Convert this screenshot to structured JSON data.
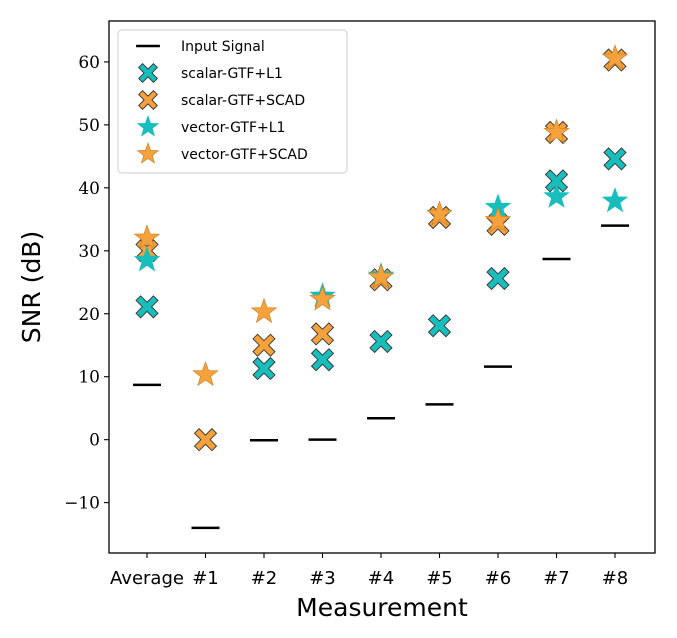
{
  "chart_data": {
    "type": "scatter",
    "categories": [
      "Average",
      "#1",
      "#2",
      "#3",
      "#4",
      "#5",
      "#6",
      "#7",
      "#8"
    ],
    "xlabel": "Measurement",
    "ylabel": "SNR (dB)",
    "ylim": [
      -18,
      66.5
    ],
    "yticks": [
      -10,
      0,
      10,
      20,
      30,
      40,
      50,
      60
    ],
    "ytick_labels": [
      "−10",
      "0",
      "10",
      "20",
      "30",
      "40",
      "50",
      "60"
    ],
    "grid": false,
    "legend_position": "top-left",
    "series": [
      {
        "name": "Input Signal",
        "marker": "hline",
        "color": "#000000",
        "values": [
          8.7,
          -14.0,
          -0.1,
          0.0,
          3.4,
          5.6,
          11.6,
          28.7,
          34.0
        ]
      },
      {
        "name": "scalar-GTF+L1",
        "marker": "x-filled",
        "color": "#17BEBB",
        "values": [
          21.1,
          null,
          11.3,
          12.7,
          15.6,
          18.1,
          25.6,
          41.1,
          44.6
        ]
      },
      {
        "name": "scalar-GTF+SCAD",
        "marker": "x-filled",
        "color": "#F5A13C",
        "values": [
          30.0,
          0.0,
          15.0,
          16.8,
          25.4,
          35.3,
          34.2,
          48.8,
          60.3
        ]
      },
      {
        "name": "vector-GTF+L1",
        "marker": "star",
        "color": "#17BEBB",
        "values": [
          28.5,
          null,
          null,
          22.8,
          26.0,
          null,
          36.9,
          38.6,
          37.9
        ]
      },
      {
        "name": "vector-GTF+SCAD",
        "marker": "star",
        "color": "#F5A13C",
        "values": [
          32.0,
          10.3,
          20.3,
          22.3,
          25.8,
          35.8,
          34.8,
          48.8,
          60.6
        ]
      }
    ]
  }
}
